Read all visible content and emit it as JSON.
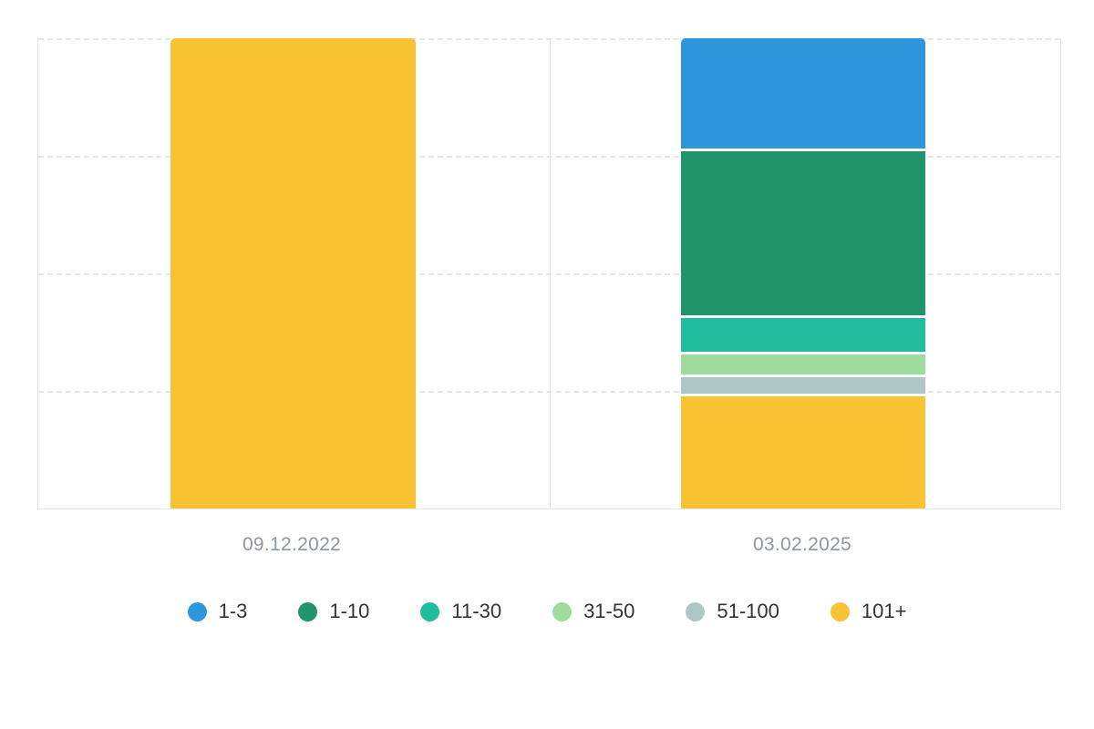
{
  "chart_data": {
    "type": "bar",
    "stacked": true,
    "unit": "percent",
    "title": "",
    "xlabel": "",
    "ylabel": "",
    "ylim": [
      0,
      100
    ],
    "grid": "horizontal-dashed",
    "gridline_positions_percent": [
      0,
      25,
      50,
      75
    ],
    "legend_position": "bottom",
    "categories": [
      "09.12.2022",
      "03.02.2025"
    ],
    "series": [
      {
        "name": "1-3",
        "color": "#2e96db",
        "values": [
          0,
          23.4
        ]
      },
      {
        "name": "1-10",
        "color": "#22946b",
        "values": [
          0,
          35.6
        ]
      },
      {
        "name": "11-30",
        "color": "#20bc9d",
        "values": [
          0,
          7.8
        ]
      },
      {
        "name": "31-50",
        "color": "#9fdb9d",
        "values": [
          0,
          4.8
        ]
      },
      {
        "name": "51-100",
        "color": "#aec7c6",
        "values": [
          0,
          4.1
        ]
      },
      {
        "name": "101+",
        "color": "#f9c232",
        "values": [
          100,
          24.4
        ]
      }
    ]
  },
  "legend": {
    "items": [
      {
        "label": "1-3",
        "color": "#2e96db"
      },
      {
        "label": "1-10",
        "color": "#22946b"
      },
      {
        "label": "11-30",
        "color": "#20bc9d"
      },
      {
        "label": "31-50",
        "color": "#9fdb9d"
      },
      {
        "label": "51-100",
        "color": "#aec7c6"
      },
      {
        "label": "101+",
        "color": "#f9c232"
      }
    ]
  },
  "colors": {
    "background": "#ffffff",
    "grid": "#e3e6e8",
    "axis_label": "#8d97a0",
    "legend_text": "#333333"
  }
}
